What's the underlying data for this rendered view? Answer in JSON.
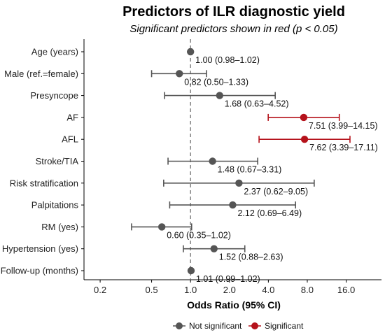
{
  "chart_data": {
    "type": "forest",
    "title": "Predictors of ILR diagnostic yield",
    "subtitle": "Significant predictors shown in red (p < 0.05)",
    "xlabel": "Odds Ratio (95% CI)",
    "x_scale": "log",
    "xlim": [
      0.15,
      30
    ],
    "xticks": [
      0.2,
      0.5,
      1.0,
      2.0,
      4.0,
      8.0,
      16.0
    ],
    "xtick_labels": [
      "0.2",
      "0.5",
      "1.0",
      "2.0",
      "4.0",
      "8.0",
      "16.0"
    ],
    "reference_line": 1.0,
    "colors": {
      "not_significant": "#555555",
      "significant": "#b5121b"
    },
    "legend": {
      "placement": "bottom",
      "items": [
        {
          "label": "Not significant",
          "key": "not_significant"
        },
        {
          "label": "Significant",
          "key": "significant"
        }
      ]
    },
    "rows": [
      {
        "label": "Age (years)",
        "or": 1.0,
        "lo": 0.98,
        "hi": 1.02,
        "significant": false,
        "text": "1.00 (0.98–1.02)"
      },
      {
        "label": "Male (ref.=female)",
        "or": 0.82,
        "lo": 0.5,
        "hi": 1.33,
        "significant": false,
        "text": "0.82 (0.50–1.33)"
      },
      {
        "label": "Presyncope",
        "or": 1.68,
        "lo": 0.63,
        "hi": 4.52,
        "significant": false,
        "text": "1.68 (0.63–4.52)"
      },
      {
        "label": "AF",
        "or": 7.51,
        "lo": 3.99,
        "hi": 14.15,
        "significant": true,
        "text": "7.51 (3.99–14.15)"
      },
      {
        "label": "AFL",
        "or": 7.62,
        "lo": 3.39,
        "hi": 17.11,
        "significant": true,
        "text": "7.62 (3.39–17.11)"
      },
      {
        "label": "Stroke/TIA",
        "or": 1.48,
        "lo": 0.67,
        "hi": 3.31,
        "significant": false,
        "text": "1.48 (0.67–3.31)"
      },
      {
        "label": "Risk stratification",
        "or": 2.37,
        "lo": 0.62,
        "hi": 9.05,
        "significant": false,
        "text": "2.37 (0.62–9.05)"
      },
      {
        "label": "Palpitations",
        "or": 2.12,
        "lo": 0.69,
        "hi": 6.49,
        "significant": false,
        "text": "2.12 (0.69–6.49)"
      },
      {
        "label": "RM (yes)",
        "or": 0.6,
        "lo": 0.35,
        "hi": 1.02,
        "significant": false,
        "text": "0.60 (0.35–1.02)"
      },
      {
        "label": "Hypertension (yes)",
        "or": 1.52,
        "lo": 0.88,
        "hi": 2.63,
        "significant": false,
        "text": "1.52 (0.88–2.63)"
      },
      {
        "label": "Follow-up (months)",
        "or": 1.01,
        "lo": 0.99,
        "hi": 1.02,
        "significant": false,
        "text": "1.01 (0.99–1.02)"
      }
    ]
  }
}
